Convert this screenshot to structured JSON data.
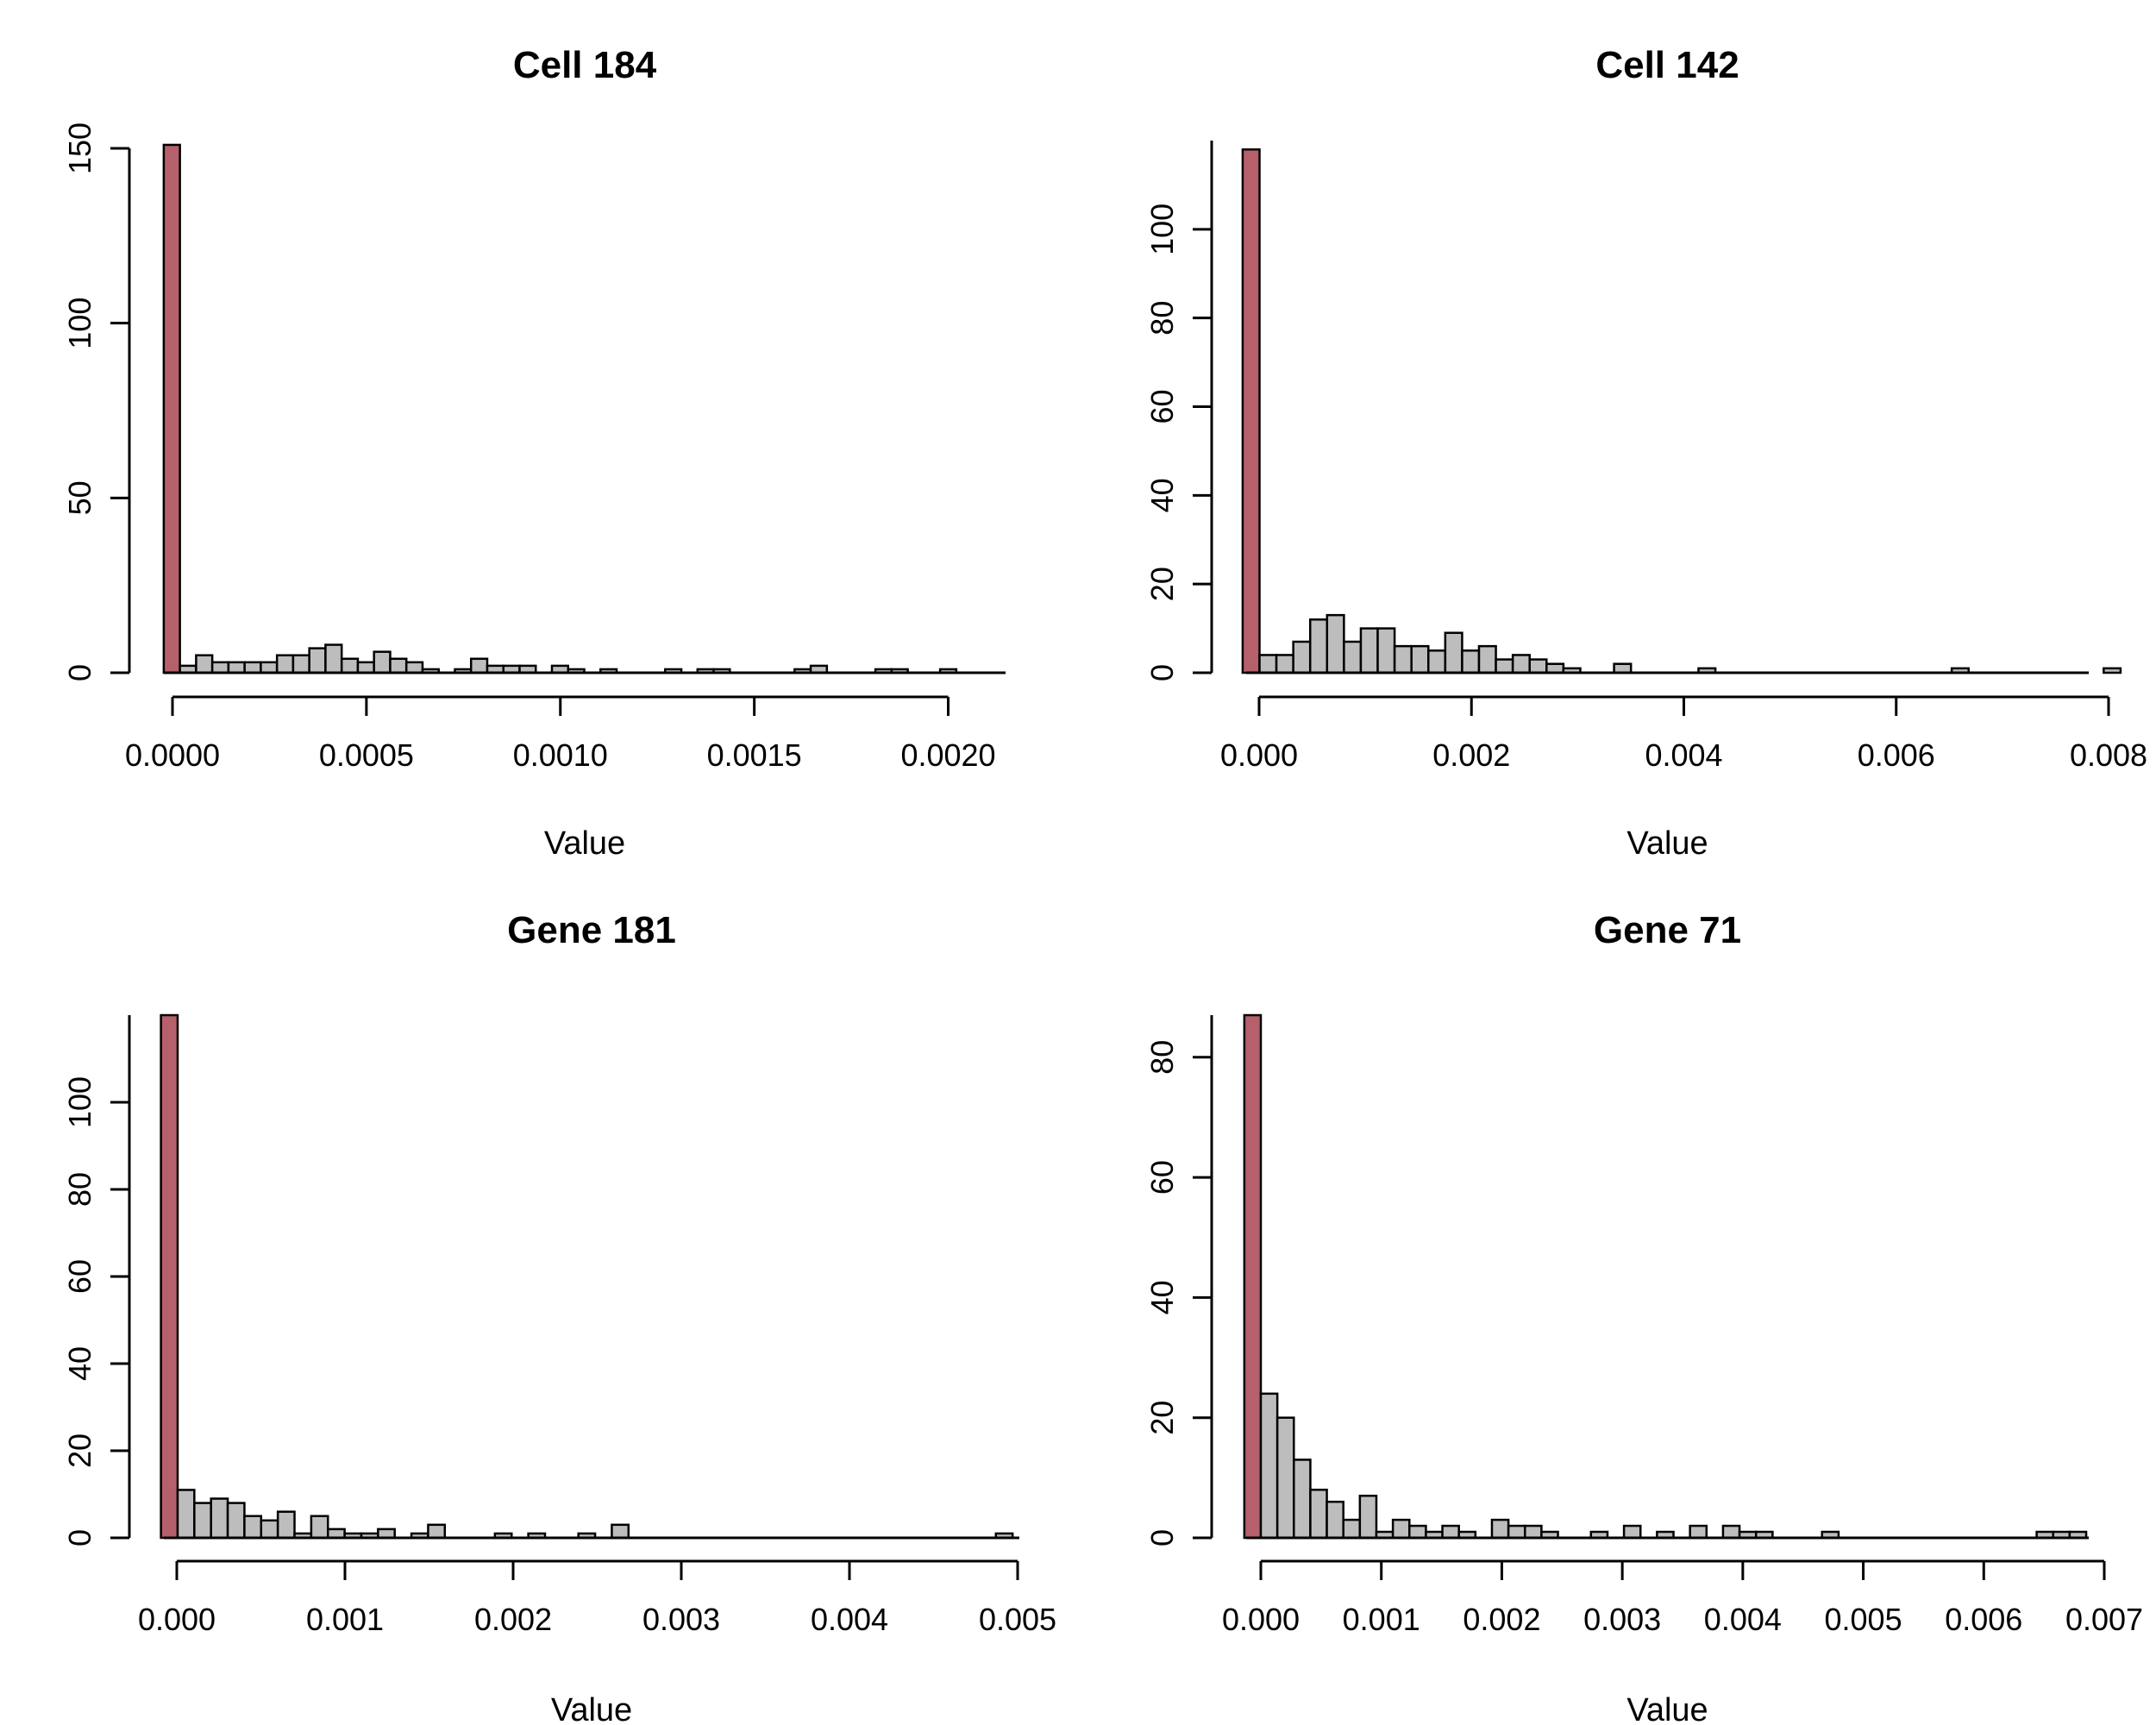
{
  "chart_data": [
    {
      "type": "bar",
      "title": "Cell 184",
      "xlabel": "Value",
      "ylabel": "",
      "xlim": [
        0,
        0.00207
      ],
      "ylim": [
        0,
        150
      ],
      "x_ticks": [
        "0.0000",
        "0.0005",
        "0.0010",
        "0.0015",
        "0.0020"
      ],
      "x_tick_values": [
        0,
        0.0005,
        0.001,
        0.0015,
        0.002
      ],
      "y_ticks": [
        "0",
        "50",
        "100",
        "150"
      ],
      "y_tick_values": [
        0,
        50,
        100,
        150
      ],
      "bin_start": -2.25e-05,
      "bin_width": 4.17e-05,
      "values": [
        151,
        2,
        5,
        3,
        3,
        3,
        3,
        5,
        5,
        7,
        8,
        4,
        3,
        6,
        4,
        3,
        1,
        0,
        1,
        4,
        2,
        2,
        2,
        0,
        2,
        1,
        0,
        1,
        0,
        0,
        0,
        1,
        0,
        1,
        1,
        0,
        0,
        0,
        0,
        1,
        2,
        0,
        0,
        0,
        1,
        1,
        0,
        0,
        1
      ],
      "colors": {
        "zero_bin": "#b5606b",
        "bins": "#bdbdbd"
      }
    },
    {
      "type": "bar",
      "title": "Cell 142",
      "xlabel": "Value",
      "ylabel": "",
      "xlim": [
        0,
        0.008
      ],
      "ylim": [
        0,
        120
      ],
      "x_ticks": [
        "0.000",
        "0.002",
        "0.004",
        "0.006",
        "0.008"
      ],
      "x_tick_values": [
        0,
        0.002,
        0.004,
        0.006,
        0.008
      ],
      "y_ticks": [
        "0",
        "20",
        "40",
        "60",
        "80",
        "100"
      ],
      "y_tick_values": [
        0,
        20,
        40,
        60,
        80,
        100
      ],
      "bin_start": -0.000155,
      "bin_width": 0.000159,
      "values": [
        118,
        4,
        4,
        7,
        12,
        13,
        7,
        10,
        10,
        6,
        6,
        5,
        9,
        5,
        6,
        3,
        4,
        3,
        2,
        1,
        0,
        0,
        2,
        0,
        0,
        0,
        0,
        1,
        0,
        0,
        0,
        0,
        0,
        0,
        0,
        0,
        0,
        0,
        0,
        0,
        0,
        0,
        1,
        0,
        0,
        0,
        0,
        0,
        0,
        0,
        0,
        1
      ],
      "colors": {
        "zero_bin": "#b5606b",
        "bins": "#bdbdbd"
      }
    },
    {
      "type": "bar",
      "title": "Gene 181",
      "xlabel": "Value",
      "ylabel": "",
      "xlim": [
        0,
        0.005
      ],
      "ylim": [
        0,
        120
      ],
      "x_ticks": [
        "0.000",
        "0.001",
        "0.002",
        "0.003",
        "0.004",
        "0.005"
      ],
      "x_tick_values": [
        0,
        0.001,
        0.002,
        0.003,
        0.004,
        0.005
      ],
      "y_ticks": [
        "0",
        "20",
        "40",
        "60",
        "80",
        "100"
      ],
      "y_tick_values": [
        0,
        20,
        40,
        60,
        80,
        100
      ],
      "bin_start": -9.43e-05,
      "bin_width": 9.93e-05,
      "values": [
        120,
        11,
        8,
        9,
        8,
        5,
        4,
        6,
        1,
        5,
        2,
        1,
        1,
        2,
        0,
        1,
        3,
        0,
        0,
        0,
        1,
        0,
        1,
        0,
        0,
        1,
        0,
        3,
        0,
        0,
        0,
        0,
        0,
        0,
        0,
        0,
        0,
        0,
        0,
        0,
        0,
        0,
        0,
        0,
        0,
        0,
        0,
        0,
        0,
        0,
        1
      ],
      "colors": {
        "zero_bin": "#b5606b",
        "bins": "#bdbdbd"
      }
    },
    {
      "type": "bar",
      "title": "Gene 71",
      "xlabel": "Value",
      "ylabel": "",
      "xlim": [
        0,
        0.007
      ],
      "ylim": [
        0,
        87
      ],
      "x_ticks": [
        "0.000",
        "0.001",
        "0.002",
        "0.003",
        "0.004",
        "0.005",
        "0.006",
        "0.007"
      ],
      "x_tick_values": [
        0,
        0.001,
        0.002,
        0.003,
        0.004,
        0.005,
        0.006,
        0.007
      ],
      "y_ticks": [
        "0",
        "20",
        "40",
        "60",
        "80"
      ],
      "y_tick_values": [
        0,
        20,
        40,
        60,
        80
      ],
      "bin_start": -0.000137,
      "bin_width": 0.000137,
      "values": [
        87,
        24,
        20,
        13,
        8,
        6,
        3,
        7,
        1,
        3,
        2,
        1,
        2,
        1,
        0,
        3,
        2,
        2,
        1,
        0,
        0,
        1,
        0,
        2,
        0,
        1,
        0,
        2,
        0,
        2,
        1,
        1,
        0,
        0,
        0,
        1,
        0,
        0,
        0,
        0,
        0,
        0,
        0,
        0,
        0,
        0,
        0,
        0,
        1,
        1,
        1
      ],
      "colors": {
        "zero_bin": "#b5606b",
        "bins": "#bdbdbd"
      }
    }
  ]
}
